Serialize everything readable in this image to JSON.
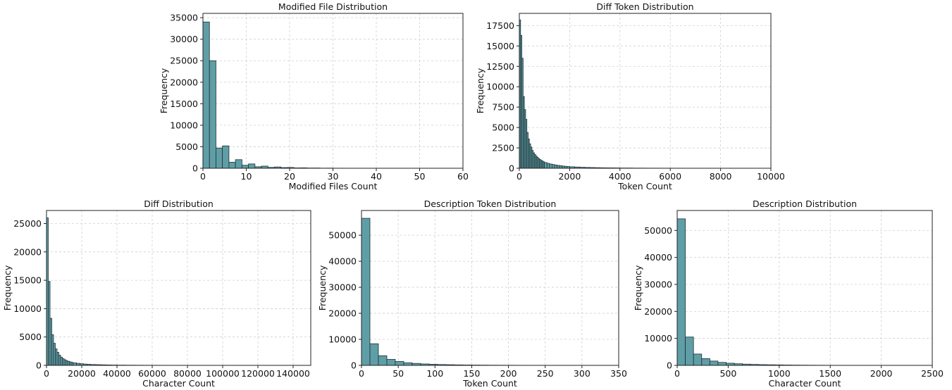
{
  "figure": {
    "bar_color": "#5f9ea7",
    "edge_color": "#1f2f33",
    "grid_color": "#cfcfcf"
  },
  "chart_data": [
    {
      "type": "bar",
      "title": "Modified File Distribution",
      "xlabel": "Modified Files Count",
      "ylabel": "Frequency",
      "xlim": [
        0,
        60
      ],
      "ylim": [
        0,
        36000
      ],
      "xticks": [
        0,
        10,
        20,
        30,
        40,
        50,
        60
      ],
      "yticks": [
        0,
        5000,
        10000,
        15000,
        20000,
        25000,
        30000,
        35000
      ],
      "grid": true,
      "bins": [
        {
          "x0": 0,
          "x1": 1.5,
          "value": 34000
        },
        {
          "x0": 1.5,
          "x1": 3,
          "value": 25000
        },
        {
          "x0": 3,
          "x1": 4.5,
          "value": 4700
        },
        {
          "x0": 4.5,
          "x1": 6,
          "value": 5200
        },
        {
          "x0": 6,
          "x1": 7.5,
          "value": 1400
        },
        {
          "x0": 7.5,
          "x1": 9,
          "value": 2000
        },
        {
          "x0": 9,
          "x1": 10.5,
          "value": 700
        },
        {
          "x0": 10.5,
          "x1": 12,
          "value": 1000
        },
        {
          "x0": 12,
          "x1": 13.5,
          "value": 350
        },
        {
          "x0": 13.5,
          "x1": 15,
          "value": 500
        },
        {
          "x0": 15,
          "x1": 16.5,
          "value": 200
        },
        {
          "x0": 16.5,
          "x1": 18,
          "value": 300
        },
        {
          "x0": 18,
          "x1": 19.5,
          "value": 150
        },
        {
          "x0": 19.5,
          "x1": 21,
          "value": 180
        },
        {
          "x0": 21,
          "x1": 22.5,
          "value": 80
        },
        {
          "x0": 22.5,
          "x1": 24,
          "value": 100
        },
        {
          "x0": 24,
          "x1": 25.5,
          "value": 60
        },
        {
          "x0": 25.5,
          "x1": 27,
          "value": 60
        },
        {
          "x0": 27,
          "x1": 28.5,
          "value": 30
        },
        {
          "x0": 28.5,
          "x1": 30,
          "value": 40
        },
        {
          "x0": 30,
          "x1": 31.5,
          "value": 20
        },
        {
          "x0": 31.5,
          "x1": 33,
          "value": 20
        },
        {
          "x0": 33,
          "x1": 34.5,
          "value": 15
        },
        {
          "x0": 34.5,
          "x1": 36,
          "value": 15
        },
        {
          "x0": 36,
          "x1": 37.5,
          "value": 10
        },
        {
          "x0": 37.5,
          "x1": 39,
          "value": 10
        },
        {
          "x0": 39,
          "x1": 40.5,
          "value": 10
        },
        {
          "x0": 40.5,
          "x1": 42,
          "value": 8
        },
        {
          "x0": 43.5,
          "x1": 45,
          "value": 5
        },
        {
          "x0": 45,
          "x1": 46.5,
          "value": 6
        },
        {
          "x0": 48,
          "x1": 49.5,
          "value": 4
        },
        {
          "x0": 51,
          "x1": 52.5,
          "value": 5
        },
        {
          "x0": 54,
          "x1": 55.5,
          "value": 4
        }
      ]
    },
    {
      "type": "bar",
      "title": "Diff Token Distribution",
      "xlabel": "Token Count",
      "ylabel": "Frequency",
      "xlim": [
        0,
        10000
      ],
      "ylim": [
        0,
        19000
      ],
      "xticks": [
        0,
        2000,
        4000,
        6000,
        8000,
        10000
      ],
      "yticks": [
        0,
        2500,
        5000,
        7500,
        10000,
        12500,
        15000,
        17500
      ],
      "grid": true,
      "bins": [
        {
          "x0": 0,
          "x1": 50,
          "value": 18200
        },
        {
          "x0": 50,
          "x1": 100,
          "value": 16300
        },
        {
          "x0": 100,
          "x1": 150,
          "value": 13500
        },
        {
          "x0": 150,
          "x1": 200,
          "value": 8800
        },
        {
          "x0": 200,
          "x1": 250,
          "value": 7200
        },
        {
          "x0": 250,
          "x1": 300,
          "value": 6000
        },
        {
          "x0": 300,
          "x1": 350,
          "value": 4400
        },
        {
          "x0": 350,
          "x1": 400,
          "value": 3600
        },
        {
          "x0": 400,
          "x1": 450,
          "value": 3000
        },
        {
          "x0": 450,
          "x1": 500,
          "value": 2600
        },
        {
          "x0": 500,
          "x1": 550,
          "value": 2200
        },
        {
          "x0": 550,
          "x1": 600,
          "value": 1900
        },
        {
          "x0": 600,
          "x1": 650,
          "value": 1700
        },
        {
          "x0": 650,
          "x1": 700,
          "value": 1500
        },
        {
          "x0": 700,
          "x1": 750,
          "value": 1350
        },
        {
          "x0": 750,
          "x1": 800,
          "value": 1200
        },
        {
          "x0": 800,
          "x1": 850,
          "value": 1080
        },
        {
          "x0": 850,
          "x1": 900,
          "value": 980
        },
        {
          "x0": 900,
          "x1": 950,
          "value": 880
        },
        {
          "x0": 950,
          "x1": 1000,
          "value": 800
        },
        {
          "x0": 1000,
          "x1": 1100,
          "value": 700
        },
        {
          "x0": 1100,
          "x1": 1200,
          "value": 600
        },
        {
          "x0": 1200,
          "x1": 1300,
          "value": 520
        },
        {
          "x0": 1300,
          "x1": 1400,
          "value": 460
        },
        {
          "x0": 1400,
          "x1": 1500,
          "value": 400
        },
        {
          "x0": 1500,
          "x1": 1600,
          "value": 350
        },
        {
          "x0": 1600,
          "x1": 1700,
          "value": 310
        },
        {
          "x0": 1700,
          "x1": 1800,
          "value": 270
        },
        {
          "x0": 1800,
          "x1": 1900,
          "value": 240
        },
        {
          "x0": 1900,
          "x1": 2000,
          "value": 210
        },
        {
          "x0": 2000,
          "x1": 2200,
          "value": 180
        },
        {
          "x0": 2200,
          "x1": 2400,
          "value": 150
        },
        {
          "x0": 2400,
          "x1": 2600,
          "value": 120
        },
        {
          "x0": 2600,
          "x1": 2800,
          "value": 100
        },
        {
          "x0": 2800,
          "x1": 3000,
          "value": 85
        },
        {
          "x0": 3000,
          "x1": 3200,
          "value": 70
        },
        {
          "x0": 3200,
          "x1": 3400,
          "value": 60
        },
        {
          "x0": 3400,
          "x1": 3600,
          "value": 50
        },
        {
          "x0": 3600,
          "x1": 3800,
          "value": 45
        },
        {
          "x0": 3800,
          "x1": 4000,
          "value": 40
        },
        {
          "x0": 4000,
          "x1": 4500,
          "value": 30
        },
        {
          "x0": 4500,
          "x1": 5000,
          "value": 20
        },
        {
          "x0": 5000,
          "x1": 5500,
          "value": 15
        },
        {
          "x0": 5500,
          "x1": 6000,
          "value": 12
        },
        {
          "x0": 6000,
          "x1": 6500,
          "value": 10
        },
        {
          "x0": 6500,
          "x1": 7000,
          "value": 8
        },
        {
          "x0": 7000,
          "x1": 7500,
          "value": 6
        },
        {
          "x0": 7500,
          "x1": 8000,
          "value": 5
        },
        {
          "x0": 8000,
          "x1": 8500,
          "value": 4
        },
        {
          "x0": 8500,
          "x1": 9000,
          "value": 3
        }
      ]
    },
    {
      "type": "bar",
      "title": "Diff Distribution",
      "xlabel": "Character Count",
      "ylabel": "Frequency",
      "xlim": [
        0,
        150000
      ],
      "ylim": [
        0,
        27300
      ],
      "xticks": [
        0,
        20000,
        40000,
        60000,
        80000,
        100000,
        120000,
        140000
      ],
      "yticks": [
        0,
        5000,
        10000,
        15000,
        20000,
        25000
      ],
      "grid": true,
      "bins": [
        {
          "x0": 0,
          "x1": 1000,
          "value": 26000
        },
        {
          "x0": 1000,
          "x1": 2000,
          "value": 14800
        },
        {
          "x0": 2000,
          "x1": 3000,
          "value": 8300
        },
        {
          "x0": 3000,
          "x1": 4000,
          "value": 5400
        },
        {
          "x0": 4000,
          "x1": 5000,
          "value": 3900
        },
        {
          "x0": 5000,
          "x1": 6000,
          "value": 2900
        },
        {
          "x0": 6000,
          "x1": 7000,
          "value": 2300
        },
        {
          "x0": 7000,
          "x1": 8000,
          "value": 1800
        },
        {
          "x0": 8000,
          "x1": 9000,
          "value": 1450
        },
        {
          "x0": 9000,
          "x1": 10000,
          "value": 1200
        },
        {
          "x0": 10000,
          "x1": 11000,
          "value": 1000
        },
        {
          "x0": 11000,
          "x1": 12000,
          "value": 850
        },
        {
          "x0": 12000,
          "x1": 13000,
          "value": 720
        },
        {
          "x0": 13000,
          "x1": 14000,
          "value": 620
        },
        {
          "x0": 14000,
          "x1": 15000,
          "value": 540
        },
        {
          "x0": 15000,
          "x1": 17000,
          "value": 450
        },
        {
          "x0": 17000,
          "x1": 19000,
          "value": 360
        },
        {
          "x0": 19000,
          "x1": 21000,
          "value": 290
        },
        {
          "x0": 21000,
          "x1": 23000,
          "value": 230
        },
        {
          "x0": 23000,
          "x1": 25000,
          "value": 190
        },
        {
          "x0": 25000,
          "x1": 28000,
          "value": 150
        },
        {
          "x0": 28000,
          "x1": 31000,
          "value": 120
        },
        {
          "x0": 31000,
          "x1": 34000,
          "value": 95
        },
        {
          "x0": 34000,
          "x1": 37000,
          "value": 75
        },
        {
          "x0": 37000,
          "x1": 40000,
          "value": 60
        },
        {
          "x0": 40000,
          "x1": 45000,
          "value": 45
        },
        {
          "x0": 45000,
          "x1": 50000,
          "value": 35
        },
        {
          "x0": 50000,
          "x1": 55000,
          "value": 28
        },
        {
          "x0": 55000,
          "x1": 60000,
          "value": 22
        },
        {
          "x0": 60000,
          "x1": 65000,
          "value": 18
        },
        {
          "x0": 65000,
          "x1": 70000,
          "value": 14
        },
        {
          "x0": 70000,
          "x1": 75000,
          "value": 11
        },
        {
          "x0": 75000,
          "x1": 80000,
          "value": 9
        },
        {
          "x0": 80000,
          "x1": 90000,
          "value": 7
        },
        {
          "x0": 90000,
          "x1": 100000,
          "value": 5
        },
        {
          "x0": 100000,
          "x1": 110000,
          "value": 4
        },
        {
          "x0": 110000,
          "x1": 120000,
          "value": 3
        },
        {
          "x0": 120000,
          "x1": 130000,
          "value": 2
        },
        {
          "x0": 130000,
          "x1": 145000,
          "value": 2
        }
      ]
    },
    {
      "type": "bar",
      "title": "Description Token Distribution",
      "xlabel": "Token Count",
      "ylabel": "Frequency",
      "xlim": [
        0,
        350
      ],
      "ylim": [
        0,
        59500
      ],
      "xticks": [
        0,
        50,
        100,
        150,
        200,
        250,
        300,
        350
      ],
      "yticks": [
        0,
        10000,
        20000,
        30000,
        40000,
        50000
      ],
      "grid": true,
      "bins": [
        {
          "x0": 0,
          "x1": 11.5,
          "value": 56500
        },
        {
          "x0": 11.5,
          "x1": 23,
          "value": 8300
        },
        {
          "x0": 23,
          "x1": 34.5,
          "value": 3700
        },
        {
          "x0": 34.5,
          "x1": 46,
          "value": 2300
        },
        {
          "x0": 46,
          "x1": 57.5,
          "value": 1500
        },
        {
          "x0": 57.5,
          "x1": 69,
          "value": 1000
        },
        {
          "x0": 69,
          "x1": 80.5,
          "value": 750
        },
        {
          "x0": 80.5,
          "x1": 92,
          "value": 550
        },
        {
          "x0": 92,
          "x1": 103.5,
          "value": 420
        },
        {
          "x0": 103.5,
          "x1": 115,
          "value": 320
        },
        {
          "x0": 115,
          "x1": 126.5,
          "value": 250
        },
        {
          "x0": 126.5,
          "x1": 138,
          "value": 190
        },
        {
          "x0": 138,
          "x1": 149.5,
          "value": 150
        },
        {
          "x0": 149.5,
          "x1": 161,
          "value": 120
        },
        {
          "x0": 161,
          "x1": 172.5,
          "value": 95
        },
        {
          "x0": 172.5,
          "x1": 184,
          "value": 75
        },
        {
          "x0": 184,
          "x1": 195.5,
          "value": 60
        },
        {
          "x0": 195.5,
          "x1": 207,
          "value": 48
        },
        {
          "x0": 207,
          "x1": 218.5,
          "value": 38
        },
        {
          "x0": 218.5,
          "x1": 230,
          "value": 30
        },
        {
          "x0": 230,
          "x1": 241.5,
          "value": 25
        },
        {
          "x0": 241.5,
          "x1": 253,
          "value": 20
        },
        {
          "x0": 253,
          "x1": 264.5,
          "value": 16
        },
        {
          "x0": 264.5,
          "x1": 276,
          "value": 13
        },
        {
          "x0": 276,
          "x1": 287.5,
          "value": 10
        },
        {
          "x0": 287.5,
          "x1": 299,
          "value": 8
        },
        {
          "x0": 299,
          "x1": 310.5,
          "value": 6
        },
        {
          "x0": 310.5,
          "x1": 322,
          "value": 5
        }
      ]
    },
    {
      "type": "bar",
      "title": "Description Distribution",
      "xlabel": "Character Count",
      "ylabel": "Frequency",
      "xlim": [
        0,
        2500
      ],
      "ylim": [
        0,
        57400
      ],
      "xticks": [
        0,
        500,
        1000,
        1500,
        2000,
        2500
      ],
      "yticks": [
        0,
        10000,
        20000,
        30000,
        40000,
        50000
      ],
      "grid": true,
      "bins": [
        {
          "x0": 0,
          "x1": 80,
          "value": 54300
        },
        {
          "x0": 80,
          "x1": 160,
          "value": 10500
        },
        {
          "x0": 160,
          "x1": 240,
          "value": 4200
        },
        {
          "x0": 240,
          "x1": 320,
          "value": 2500
        },
        {
          "x0": 320,
          "x1": 400,
          "value": 1600
        },
        {
          "x0": 400,
          "x1": 480,
          "value": 1100
        },
        {
          "x0": 480,
          "x1": 560,
          "value": 800
        },
        {
          "x0": 560,
          "x1": 640,
          "value": 600
        },
        {
          "x0": 640,
          "x1": 720,
          "value": 450
        },
        {
          "x0": 720,
          "x1": 800,
          "value": 350
        },
        {
          "x0": 800,
          "x1": 880,
          "value": 270
        },
        {
          "x0": 880,
          "x1": 960,
          "value": 210
        },
        {
          "x0": 960,
          "x1": 1040,
          "value": 170
        },
        {
          "x0": 1040,
          "x1": 1120,
          "value": 130
        },
        {
          "x0": 1120,
          "x1": 1200,
          "value": 100
        },
        {
          "x0": 1200,
          "x1": 1280,
          "value": 80
        },
        {
          "x0": 1280,
          "x1": 1360,
          "value": 65
        },
        {
          "x0": 1360,
          "x1": 1440,
          "value": 50
        },
        {
          "x0": 1440,
          "x1": 1520,
          "value": 40
        },
        {
          "x0": 1520,
          "x1": 1600,
          "value": 32
        },
        {
          "x0": 1600,
          "x1": 1680,
          "value": 26
        },
        {
          "x0": 1680,
          "x1": 1760,
          "value": 20
        },
        {
          "x0": 1760,
          "x1": 1840,
          "value": 16
        },
        {
          "x0": 1840,
          "x1": 1920,
          "value": 13
        },
        {
          "x0": 1920,
          "x1": 2000,
          "value": 10
        },
        {
          "x0": 2000,
          "x1": 2080,
          "value": 8
        },
        {
          "x0": 2080,
          "x1": 2160,
          "value": 6
        },
        {
          "x0": 2160,
          "x1": 2240,
          "value": 5
        },
        {
          "x0": 2240,
          "x1": 2320,
          "value": 4
        }
      ]
    }
  ]
}
